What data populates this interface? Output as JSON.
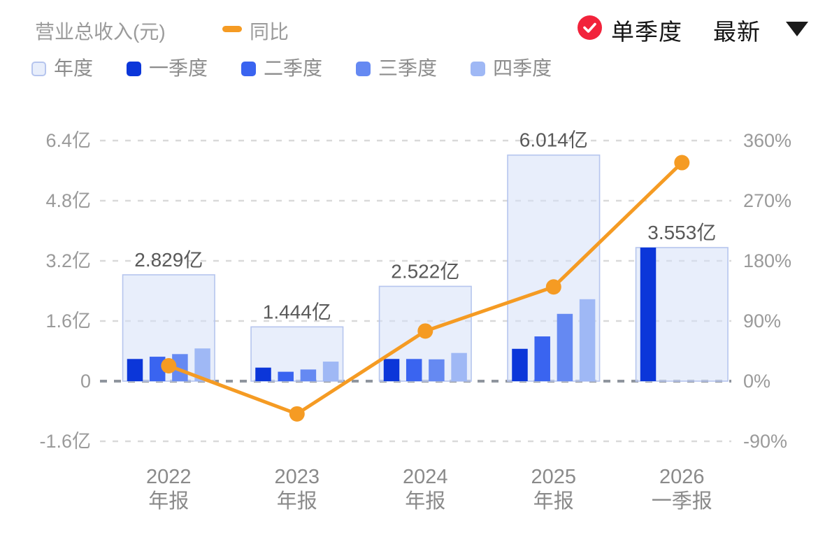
{
  "header": {
    "title": "营业总收入(元)",
    "line_legend": "同比",
    "mode": "单季度",
    "period": "最新",
    "check_icon": "red-circle-white-check",
    "caret_icon": "dropdown-triangle-down"
  },
  "colors": {
    "orange_line": "#f59b23",
    "red_badge": "#f2233b",
    "annual_fill": "rgba(214,224,248,0.55)",
    "annual_border": "#b6c5ee",
    "grid_light": "#d9d9d9",
    "grid_zero": "#8f959e",
    "axis_text": "#9a9a9a",
    "x_label_text": "#8a8a8a",
    "value_label_text": "#595959"
  },
  "legend": {
    "items": [
      {
        "key": "annual",
        "label": "年度",
        "swatch": "outlined",
        "color": "rgba(214,224,248,0.55)",
        "border": "#b6c5ee"
      },
      {
        "key": "q1",
        "label": "一季度",
        "swatch": "solid",
        "color": "#0b36d9"
      },
      {
        "key": "q2",
        "label": "二季度",
        "swatch": "solid",
        "color": "#3a64f0"
      },
      {
        "key": "q3",
        "label": "三季度",
        "swatch": "solid",
        "color": "#6589f2"
      },
      {
        "key": "q4",
        "label": "四季度",
        "swatch": "solid",
        "color": "#9fb8f5"
      }
    ]
  },
  "chart_data": {
    "type": "bar+line",
    "title": "营业总收入(元)",
    "categories": [
      [
        "2022",
        "年报"
      ],
      [
        "2023",
        "年报"
      ],
      [
        "2024",
        "年报"
      ],
      [
        "2025",
        "年报"
      ],
      [
        "2026",
        "一季报"
      ]
    ],
    "annual_totals": [
      2.829,
      1.444,
      2.522,
      6.014,
      3.553
    ],
    "annual_labels": [
      "2.829亿",
      "1.444亿",
      "2.522亿",
      "6.014亿",
      "3.553亿"
    ],
    "quarter_series": [
      {
        "name": "一季度",
        "color": "#0b36d9",
        "values": [
          0.59,
          0.36,
          0.59,
          0.86,
          3.553
        ]
      },
      {
        "name": "二季度",
        "color": "#3a64f0",
        "values": [
          0.65,
          0.25,
          0.59,
          1.19,
          null
        ]
      },
      {
        "name": "三季度",
        "color": "#6589f2",
        "values": [
          0.72,
          0.31,
          0.58,
          1.79,
          null
        ]
      },
      {
        "name": "四季度",
        "color": "#9fb8f5",
        "values": [
          0.87,
          0.52,
          0.75,
          2.18,
          null
        ]
      }
    ],
    "line_series": {
      "name": "同比",
      "color": "#f59b23",
      "percent_values": [
        23,
        -49,
        75,
        141,
        327
      ]
    },
    "left_axis": {
      "unit": "亿",
      "tick_labels": [
        "6.4亿",
        "4.8亿",
        "3.2亿",
        "1.6亿",
        "0",
        "-1.6亿"
      ],
      "tick_values": [
        6.4,
        4.8,
        3.2,
        1.6,
        0,
        -1.6
      ]
    },
    "right_axis": {
      "unit": "%",
      "tick_labels": [
        "360%",
        "270%",
        "180%",
        "90%",
        "0%",
        "-90%"
      ],
      "tick_values": [
        360,
        270,
        180,
        90,
        0,
        -90
      ]
    },
    "grid": "dashed-horizontal",
    "legend_position": "top-left"
  }
}
